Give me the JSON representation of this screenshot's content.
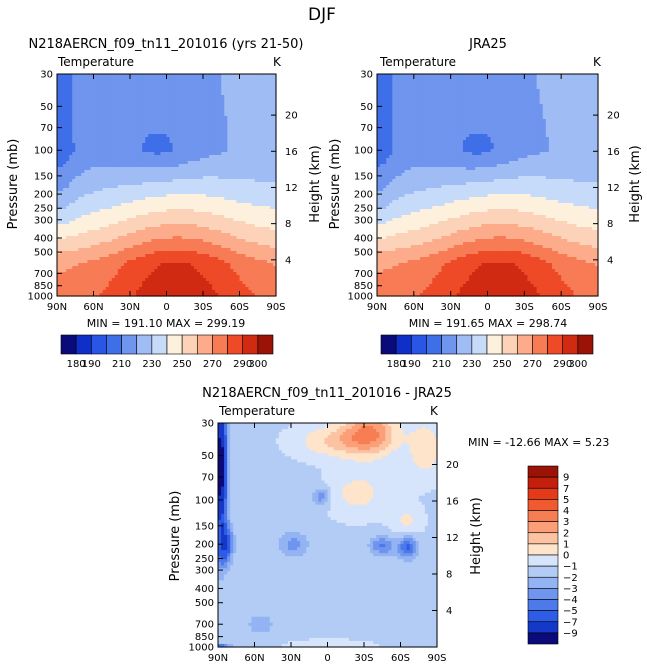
{
  "figure_title": "DJF",
  "chart_data": [
    {
      "type": "heatmap",
      "id": "model",
      "title": "N218AERCN_f09_tn11_201016 (yrs 21-50)",
      "variable_label": "Temperature",
      "units": "K",
      "xlabel": "",
      "ylabel": "Pressure (mb)",
      "y2label": "Height (km)",
      "x_ticks": [
        "90N",
        "60N",
        "30N",
        "0",
        "30S",
        "60S",
        "90S"
      ],
      "x_tick_values": [
        -90,
        -60,
        -30,
        0,
        30,
        60,
        90
      ],
      "xlim": [
        -90,
        90
      ],
      "y_ticks": [
        "30",
        "50",
        "70",
        "100",
        "150",
        "200",
        "250",
        "300",
        "400",
        "500",
        "700",
        "850",
        "1000"
      ],
      "y_tick_values": [
        30,
        50,
        70,
        100,
        150,
        200,
        250,
        300,
        400,
        500,
        700,
        850,
        1000
      ],
      "ylim": [
        30,
        1000
      ],
      "y2_ticks": [
        "20",
        "16",
        "12",
        "8",
        "4"
      ],
      "y2_tick_values": [
        20,
        16,
        12,
        8,
        4
      ],
      "stats": "MIN = 191.10   MAX = 299.19",
      "min": 191.1,
      "max": 299.19,
      "field": "absolute"
    },
    {
      "type": "heatmap",
      "id": "obs",
      "title": "JRA25",
      "variable_label": "Temperature",
      "units": "K",
      "xlabel": "",
      "ylabel": "Pressure (mb)",
      "y2label": "Height (km)",
      "x_ticks": [
        "90N",
        "60N",
        "30N",
        "0",
        "30S",
        "60S",
        "90S"
      ],
      "x_tick_values": [
        -90,
        -60,
        -30,
        0,
        30,
        60,
        90
      ],
      "xlim": [
        -90,
        90
      ],
      "y_ticks": [
        "30",
        "50",
        "70",
        "100",
        "150",
        "200",
        "250",
        "300",
        "400",
        "500",
        "700",
        "850",
        "1000"
      ],
      "y_tick_values": [
        30,
        50,
        70,
        100,
        150,
        200,
        250,
        300,
        400,
        500,
        700,
        850,
        1000
      ],
      "ylim": [
        30,
        1000
      ],
      "y2_ticks": [
        "20",
        "16",
        "12",
        "8",
        "4"
      ],
      "y2_tick_values": [
        20,
        16,
        12,
        8,
        4
      ],
      "stats": "MIN = 191.65   MAX = 298.74",
      "min": 191.65,
      "max": 298.74,
      "field": "absolute"
    },
    {
      "type": "heatmap",
      "id": "diff",
      "title": "N218AERCN_f09_tn11_201016 - JRA25",
      "variable_label": "Temperature",
      "units": "K",
      "xlabel": "",
      "ylabel": "Pressure (mb)",
      "y2label": "Height (km)",
      "x_ticks": [
        "90N",
        "60N",
        "30N",
        "0",
        "30S",
        "60S",
        "90S"
      ],
      "x_tick_values": [
        -90,
        -60,
        -30,
        0,
        30,
        60,
        90
      ],
      "xlim": [
        -90,
        90
      ],
      "y_ticks": [
        "30",
        "50",
        "70",
        "100",
        "150",
        "200",
        "250",
        "300",
        "400",
        "500",
        "700",
        "850",
        "1000"
      ],
      "y_tick_values": [
        30,
        50,
        70,
        100,
        150,
        200,
        250,
        300,
        400,
        500,
        700,
        850,
        1000
      ],
      "ylim": [
        30,
        1000
      ],
      "y2_ticks": [
        "20",
        "16",
        "12",
        "8",
        "4"
      ],
      "y2_tick_values": [
        20,
        16,
        12,
        8,
        4
      ],
      "stats": "MIN = -12.66   MAX =   5.23",
      "min": -12.66,
      "max": 5.23,
      "field": "difference"
    }
  ],
  "abs_colorbar": {
    "levels": [
      180,
      190,
      200,
      210,
      220,
      230,
      240,
      250,
      260,
      270,
      280,
      290,
      300
    ],
    "labels": [
      "180",
      "190",
      "210",
      "230",
      "250",
      "270",
      "290",
      "300"
    ],
    "label_level_index": [
      0,
      1,
      3,
      5,
      7,
      9,
      11,
      12
    ],
    "colors": [
      "#0a0a7a",
      "#0f2fc8",
      "#2a56e6",
      "#3f6fe8",
      "#6f95ee",
      "#9fbcf4",
      "#c6daf9",
      "#fdf0dc",
      "#fcd3b8",
      "#fcac8a",
      "#f77b54",
      "#ee4a28",
      "#d02a12",
      "#9b1206"
    ]
  },
  "diff_colorbar": {
    "levels": [
      -9,
      -7,
      -5,
      -4,
      -3,
      -2,
      -1,
      0,
      1,
      2,
      3,
      4,
      5,
      7,
      9
    ],
    "labels": [
      "9",
      "7",
      "5",
      "4",
      "3",
      "2",
      "1",
      "0",
      "−1",
      "−2",
      "−3",
      "−4",
      "−5",
      "−7",
      "−9"
    ],
    "colors": [
      "#9b1206",
      "#c41e0c",
      "#e33a1a",
      "#f05a30",
      "#f77d52",
      "#fb9f78",
      "#fcc3a2",
      "#fde4cb",
      "#d6e5fb",
      "#b3ccf6",
      "#93b3f2",
      "#6f95ee",
      "#4d79ea",
      "#2f5ce6",
      "#1638c8",
      "#0a0a7a"
    ]
  }
}
